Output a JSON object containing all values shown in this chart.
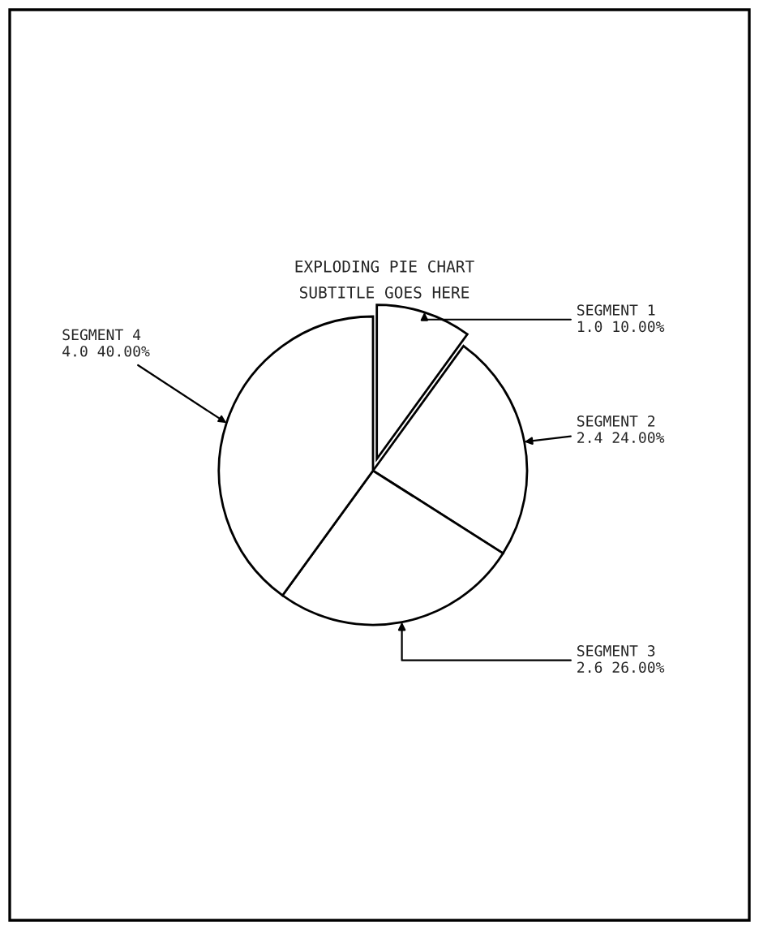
{
  "chart_data": {
    "type": "pie",
    "title": "EXPLODING PIE CHART",
    "subtitle": "SUBTITLE GOES HERE",
    "categories": [
      "SEGMENT 1",
      "SEGMENT 2",
      "SEGMENT 3",
      "SEGMENT 4"
    ],
    "values": [
      1.0,
      2.4,
      2.6,
      4.0
    ],
    "value_labels": [
      "1.0 10.00%",
      "2.4 24.00%",
      "2.6 26.00%",
      "4.0 40.00%"
    ],
    "colors": [
      "#ffffff",
      "#ffffff",
      "#ffffff",
      "#ffffff"
    ]
  }
}
